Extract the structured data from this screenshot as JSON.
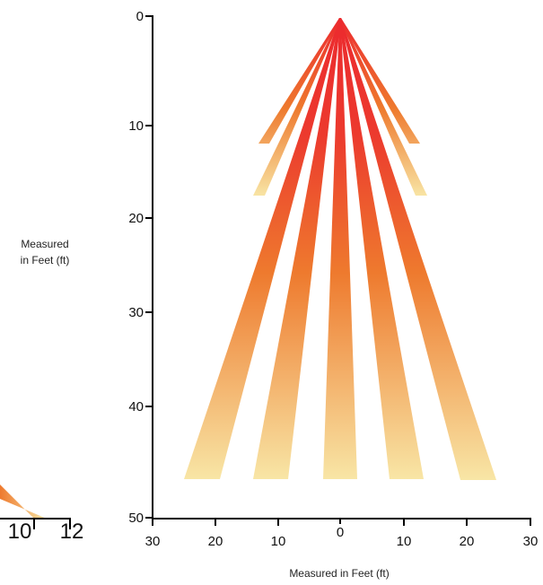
{
  "y_axis": {
    "ticks": [
      "0",
      "10",
      "20",
      "30",
      "40",
      "50"
    ]
  },
  "x_axis": {
    "ticks": [
      "30",
      "20",
      "10",
      "0",
      "10",
      "20",
      "30"
    ],
    "label": "Measured in Feet (ft)"
  },
  "side_label": {
    "line1": "Measured",
    "line2": "in Feet (ft)"
  },
  "partial_axis": {
    "ticks": [
      "10",
      "12"
    ]
  },
  "colors": {
    "ray_far": "#f8e6a6",
    "ray_mid": "#ee7a2e",
    "ray_near": "#ec2a2e"
  }
}
